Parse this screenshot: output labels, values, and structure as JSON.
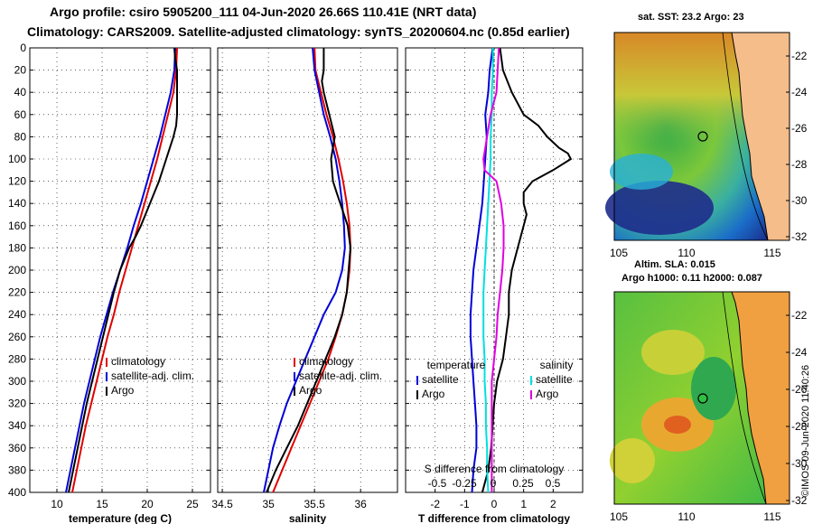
{
  "header": {
    "line1": "Argo profile: csiro 5905200_111 04-Jun-2020 26.66S 110.41E (NRT data)",
    "line2": "Climatology: CARS2009. Satellite-adjusted climatology: synTS_20200604.nc (0.85d earlier)"
  },
  "colors": {
    "climatology": "#e00000",
    "satellite": "#0000d8",
    "argo": "#000000",
    "sat_salinity": "#00e0e0",
    "argo_salinity": "#e000e0"
  },
  "chart_data": [
    {
      "type": "line",
      "id": "temperature",
      "xlabel": "temperature (deg C)",
      "xlim": [
        7,
        27
      ],
      "ylim": [
        0,
        400
      ],
      "xticks": [
        10,
        15,
        20,
        25
      ],
      "yticks": [
        0,
        20,
        40,
        60,
        80,
        100,
        120,
        140,
        160,
        180,
        200,
        220,
        240,
        260,
        280,
        300,
        320,
        340,
        360,
        380,
        400
      ],
      "legend": [
        "climatology",
        "satellite-adj. clim.",
        "Argo"
      ],
      "legend_position": "lower-middle",
      "series": [
        {
          "name": "climatology",
          "depth": [
            0,
            20,
            40,
            60,
            80,
            100,
            120,
            140,
            160,
            180,
            200,
            220,
            240,
            260,
            280,
            300,
            320,
            340,
            360,
            380,
            400
          ],
          "values": [
            23.3,
            23.2,
            22.9,
            22.3,
            21.7,
            21.1,
            20.4,
            19.7,
            19.0,
            18.3,
            17.6,
            16.9,
            16.3,
            15.6,
            15.0,
            14.4,
            13.8,
            13.2,
            12.7,
            12.2,
            11.7
          ]
        },
        {
          "name": "satellite-adj. clim.",
          "depth": [
            0,
            20,
            40,
            60,
            80,
            100,
            120,
            140,
            160,
            180,
            200,
            220,
            240,
            260,
            280,
            300,
            320,
            340,
            360,
            380,
            400
          ],
          "values": [
            23.1,
            23.0,
            22.6,
            22.0,
            21.4,
            20.7,
            20.0,
            19.3,
            18.5,
            17.8,
            17.0,
            16.2,
            15.5,
            14.8,
            14.2,
            13.6,
            13.0,
            12.5,
            12.0,
            11.5,
            11.0
          ]
        },
        {
          "name": "Argo",
          "depth": [
            0,
            10,
            20,
            40,
            60,
            70,
            80,
            90,
            100,
            110,
            120,
            130,
            140,
            150,
            160,
            170,
            180,
            190,
            200,
            220,
            240,
            260,
            280,
            300,
            320,
            340,
            360,
            380,
            400
          ],
          "values": [
            23.0,
            23.1,
            23.3,
            23.3,
            23.3,
            23.2,
            22.9,
            22.5,
            22.1,
            21.7,
            21.3,
            20.8,
            20.3,
            19.8,
            19.3,
            18.7,
            18.0,
            17.5,
            17.0,
            16.3,
            15.7,
            15.1,
            14.5,
            13.9,
            13.3,
            12.8,
            12.3,
            11.8,
            11.3
          ]
        }
      ]
    },
    {
      "type": "line",
      "id": "salinity",
      "xlabel": "salinity",
      "xlim": [
        34.45,
        36.4
      ],
      "ylim": [
        0,
        400
      ],
      "xticks": [
        34.5,
        35,
        35.5,
        36
      ],
      "legend": [
        "climatology",
        "satellite-adj. clim.",
        "Argo"
      ],
      "legend_position": "lower-middle",
      "series": [
        {
          "name": "climatology",
          "depth": [
            0,
            20,
            40,
            60,
            80,
            100,
            120,
            140,
            160,
            180,
            200,
            220,
            240,
            260,
            280,
            300,
            320,
            340,
            360,
            380,
            400
          ],
          "values": [
            35.5,
            35.51,
            35.57,
            35.63,
            35.7,
            35.76,
            35.81,
            35.85,
            35.88,
            35.89,
            35.88,
            35.85,
            35.8,
            35.73,
            35.65,
            35.55,
            35.45,
            35.35,
            35.25,
            35.15,
            35.05
          ]
        },
        {
          "name": "satellite-adj. clim.",
          "depth": [
            0,
            20,
            40,
            60,
            80,
            100,
            120,
            140,
            160,
            180,
            200,
            220,
            240,
            260,
            280,
            300,
            320,
            340,
            360,
            380,
            400
          ],
          "values": [
            35.48,
            35.5,
            35.55,
            35.6,
            35.67,
            35.73,
            35.77,
            35.8,
            35.82,
            35.83,
            35.8,
            35.73,
            35.6,
            35.5,
            35.4,
            35.3,
            35.2,
            35.12,
            35.05,
            35.0,
            34.95
          ]
        },
        {
          "name": "Argo",
          "depth": [
            0,
            20,
            30,
            40,
            60,
            80,
            100,
            120,
            130,
            140,
            150,
            160,
            180,
            200,
            220,
            240,
            260,
            280,
            300,
            320,
            340,
            360,
            380,
            400
          ],
          "values": [
            35.6,
            35.6,
            35.58,
            35.6,
            35.66,
            35.72,
            35.68,
            35.7,
            35.74,
            35.78,
            35.82,
            35.86,
            35.89,
            35.87,
            35.85,
            35.8,
            35.72,
            35.62,
            35.52,
            35.42,
            35.32,
            35.2,
            35.08,
            34.98
          ]
        }
      ]
    },
    {
      "type": "line",
      "id": "difference",
      "xlabel": "T difference from climatology",
      "top_axis_label": "S difference from climatology",
      "xlim": [
        -3,
        3
      ],
      "ylim": [
        0,
        400
      ],
      "xticks": [
        -2,
        -1,
        0,
        1,
        2
      ],
      "top_xticks": [
        "-0.5",
        "-0.25",
        "0",
        "0.25",
        "0.5"
      ],
      "legend_left_title": "temperature",
      "legend_right_title": "salinity",
      "legend_left": [
        "satellite",
        "Argo"
      ],
      "legend_right": [
        "satellite",
        "Argo"
      ],
      "series": [
        {
          "name": "temperature satellite",
          "depth": [
            0,
            20,
            40,
            60,
            80,
            100,
            120,
            140,
            160,
            180,
            200,
            220,
            240,
            260,
            280,
            300,
            320,
            340,
            360,
            380,
            400
          ],
          "values": [
            -0.05,
            -0.15,
            -0.2,
            -0.3,
            -0.25,
            -0.3,
            -0.35,
            -0.4,
            -0.5,
            -0.6,
            -0.7,
            -0.75,
            -0.8,
            -0.8,
            -0.75,
            -0.7,
            -0.65,
            -0.6,
            -0.6,
            -0.7,
            -0.75
          ]
        },
        {
          "name": "temperature Argo",
          "depth": [
            0,
            20,
            40,
            60,
            70,
            80,
            90,
            95,
            100,
            110,
            120,
            130,
            140,
            150,
            160,
            170,
            180,
            200,
            220,
            240,
            260,
            280,
            300,
            320,
            340,
            360,
            380,
            400
          ],
          "values": [
            0.2,
            0.3,
            0.6,
            1.0,
            1.5,
            1.8,
            2.2,
            2.5,
            2.6,
            2.0,
            1.3,
            1.0,
            1.0,
            1.1,
            1.0,
            0.9,
            0.8,
            0.6,
            0.5,
            0.5,
            0.4,
            0.3,
            0.1,
            0.0,
            -0.05,
            -0.1,
            -0.2,
            -0.4
          ]
        },
        {
          "name": "salinity satellite",
          "depth": [
            0,
            20,
            40,
            60,
            80,
            100,
            120,
            140,
            160,
            180,
            200,
            220,
            240,
            260,
            280,
            300,
            320,
            340,
            360,
            380,
            400
          ],
          "values": [
            -0.01,
            -0.01,
            -0.02,
            -0.02,
            -0.03,
            -0.03,
            -0.04,
            -0.05,
            -0.06,
            -0.07,
            -0.08,
            -0.09,
            -0.09,
            -0.09,
            -0.08,
            -0.08,
            -0.07,
            -0.07,
            -0.06,
            -0.06,
            -0.05
          ]
        },
        {
          "name": "salinity Argo",
          "depth": [
            0,
            20,
            40,
            60,
            80,
            100,
            110,
            120,
            140,
            160,
            180,
            200,
            220,
            240,
            260,
            280,
            300,
            320,
            340,
            360,
            380,
            400
          ],
          "values": [
            0.04,
            0.03,
            0.02,
            -0.03,
            -0.06,
            -0.09,
            -0.08,
            0.02,
            0.06,
            0.08,
            0.08,
            0.07,
            0.05,
            0.03,
            0.02,
            0.0,
            -0.02,
            -0.02,
            -0.02,
            -0.02,
            -0.02,
            -0.02
          ]
        }
      ]
    }
  ],
  "maps": {
    "sst": {
      "title": "sat. SST: 23.2 Argo: 23",
      "yticks": [
        "-22",
        "-24",
        "-26",
        "-28",
        "-30",
        "-32"
      ],
      "xticks": [
        "105",
        "110",
        "115"
      ],
      "argo_position": {
        "lon": 110.41,
        "lat": -26.66
      }
    },
    "altim": {
      "title1": "Altim. SLA: 0.015",
      "title2": "Argo h1000: 0.11 h2000: 0.087",
      "yticks": [
        "-22",
        "-24",
        "-26",
        "-28",
        "-30",
        "-32"
      ],
      "xticks": [
        "105",
        "110",
        "115"
      ],
      "argo_position": {
        "lon": 110.41,
        "lat": -26.66
      }
    }
  },
  "footer": {
    "stamp": "©IMOS 09-Jun-2020 11:40:26"
  }
}
